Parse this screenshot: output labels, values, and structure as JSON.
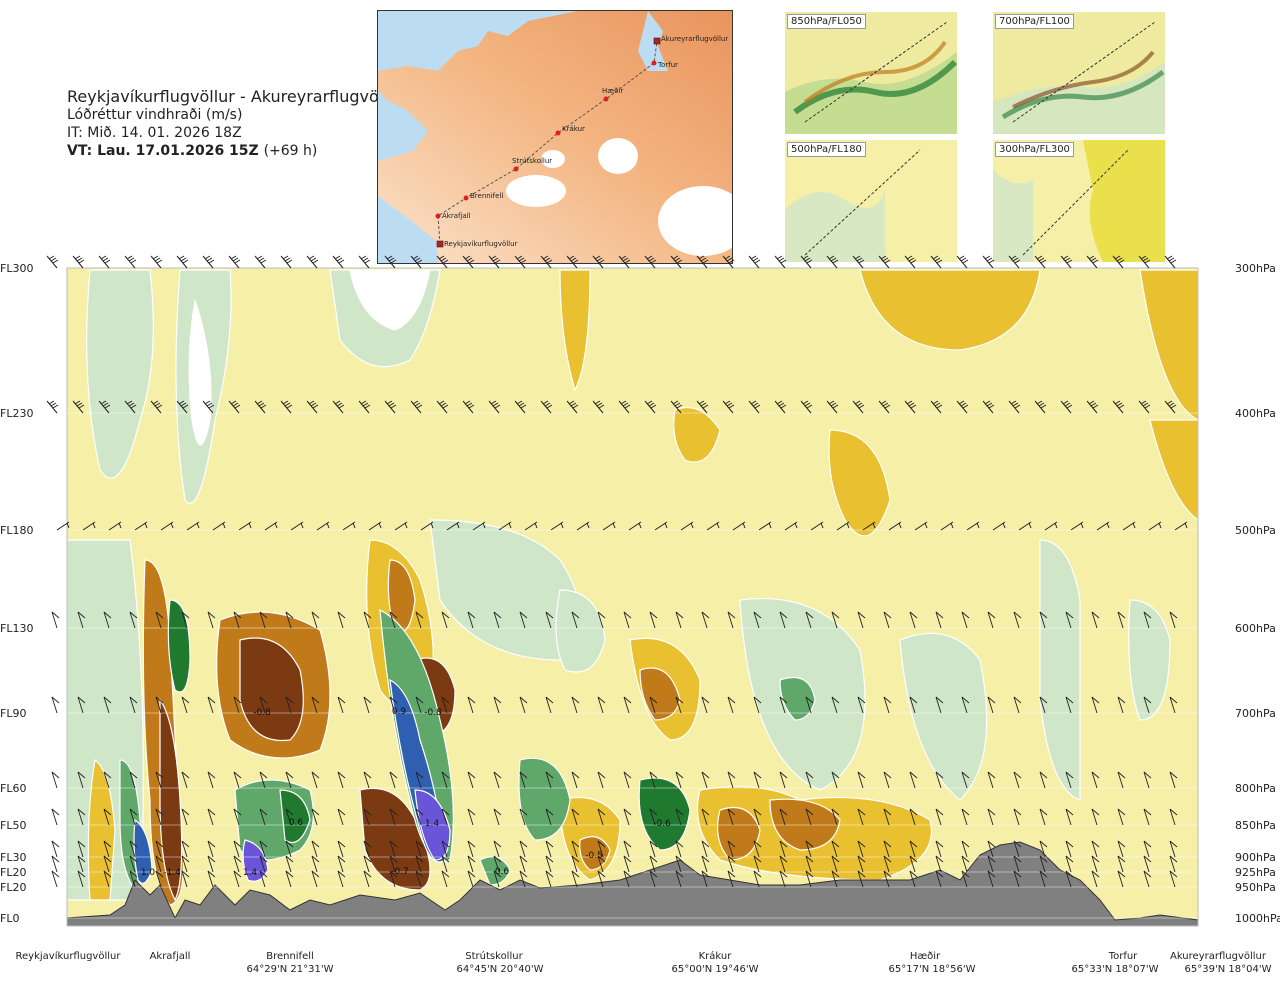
{
  "header": {
    "title": "Reykjavíkurflugvöllur - Akureyrarflugvöllur",
    "subtitle": "Lóðréttur vindhraði (m/s)",
    "issue_time": "IT: Mið. 14. 01. 2026 18Z",
    "valid_time": "VT: Lau. 17.01.2026 15Z",
    "valid_offset": "(+69 h)"
  },
  "route_map": {
    "waypoints": [
      "Akureyrarflugvöllur",
      "Torfur",
      "Hæðir",
      "Krákur",
      "Strútskollur",
      "Brennifell",
      "Akrafjall",
      "Reykjavíkurflugvöllur"
    ]
  },
  "level_maps": [
    {
      "label": "850hPa/FL050"
    },
    {
      "label": "700hPa/FL100"
    },
    {
      "label": "500hPa/FL180"
    },
    {
      "label": "300hPa/FL300"
    }
  ],
  "chart_data": {
    "type": "heatmap",
    "y_left_labels": [
      "FL300",
      "FL230",
      "FL180",
      "FL130",
      "FL90",
      "FL60",
      "FL50",
      "FL30",
      "FL20",
      "FL20",
      "FL0"
    ],
    "y_right_labels": [
      "300hPa",
      "400hPa",
      "500hPa",
      "600hPa",
      "700hPa",
      "800hPa",
      "850hPa",
      "900hPa",
      "925hPa",
      "950hPa",
      "1000hPa"
    ],
    "x_locations": [
      {
        "name": "Reykjavíkurflugvöllur",
        "coord": ""
      },
      {
        "name": "Akrafjall",
        "coord": ""
      },
      {
        "name": "Brennifell",
        "coord": "64°29'N 21°31'W"
      },
      {
        "name": "Strútskollur",
        "coord": "64°45'N 20°40'W"
      },
      {
        "name": "Krákur",
        "coord": "65°00'N 19°46'W"
      },
      {
        "name": "Hæðir",
        "coord": "65°17'N 18°56'W"
      },
      {
        "name": "Torfur",
        "coord": "65°33'N 18°07'W"
      },
      {
        "name": "Akureyrarflugvöllur",
        "coord": "65°39'N 18°04'W"
      }
    ],
    "annotations": [
      {
        "text": "-0.8"
      },
      {
        "text": "0.9"
      },
      {
        "text": "-0.8"
      },
      {
        "text": "0.6"
      },
      {
        "text": "1.4"
      },
      {
        "text": "-0.6"
      },
      {
        "text": "-0.5"
      },
      {
        "text": "1.0"
      },
      {
        "text": "-1.4"
      },
      {
        "text": "1.4"
      },
      {
        "text": "-0.7"
      },
      {
        "text": "0.6"
      }
    ],
    "colors": {
      "strong_down": "#7b3a12",
      "down": "#c07a1a",
      "weak_down": "#e8c030",
      "neutral": "#f6efa8",
      "weak_up": "#cfe6c8",
      "up": "#5fa86a",
      "strong_up": "#1f7a30",
      "very_strong_up": "#2f5fb0",
      "extreme_up": "#6a55d8",
      "terrain": "#808080"
    }
  }
}
